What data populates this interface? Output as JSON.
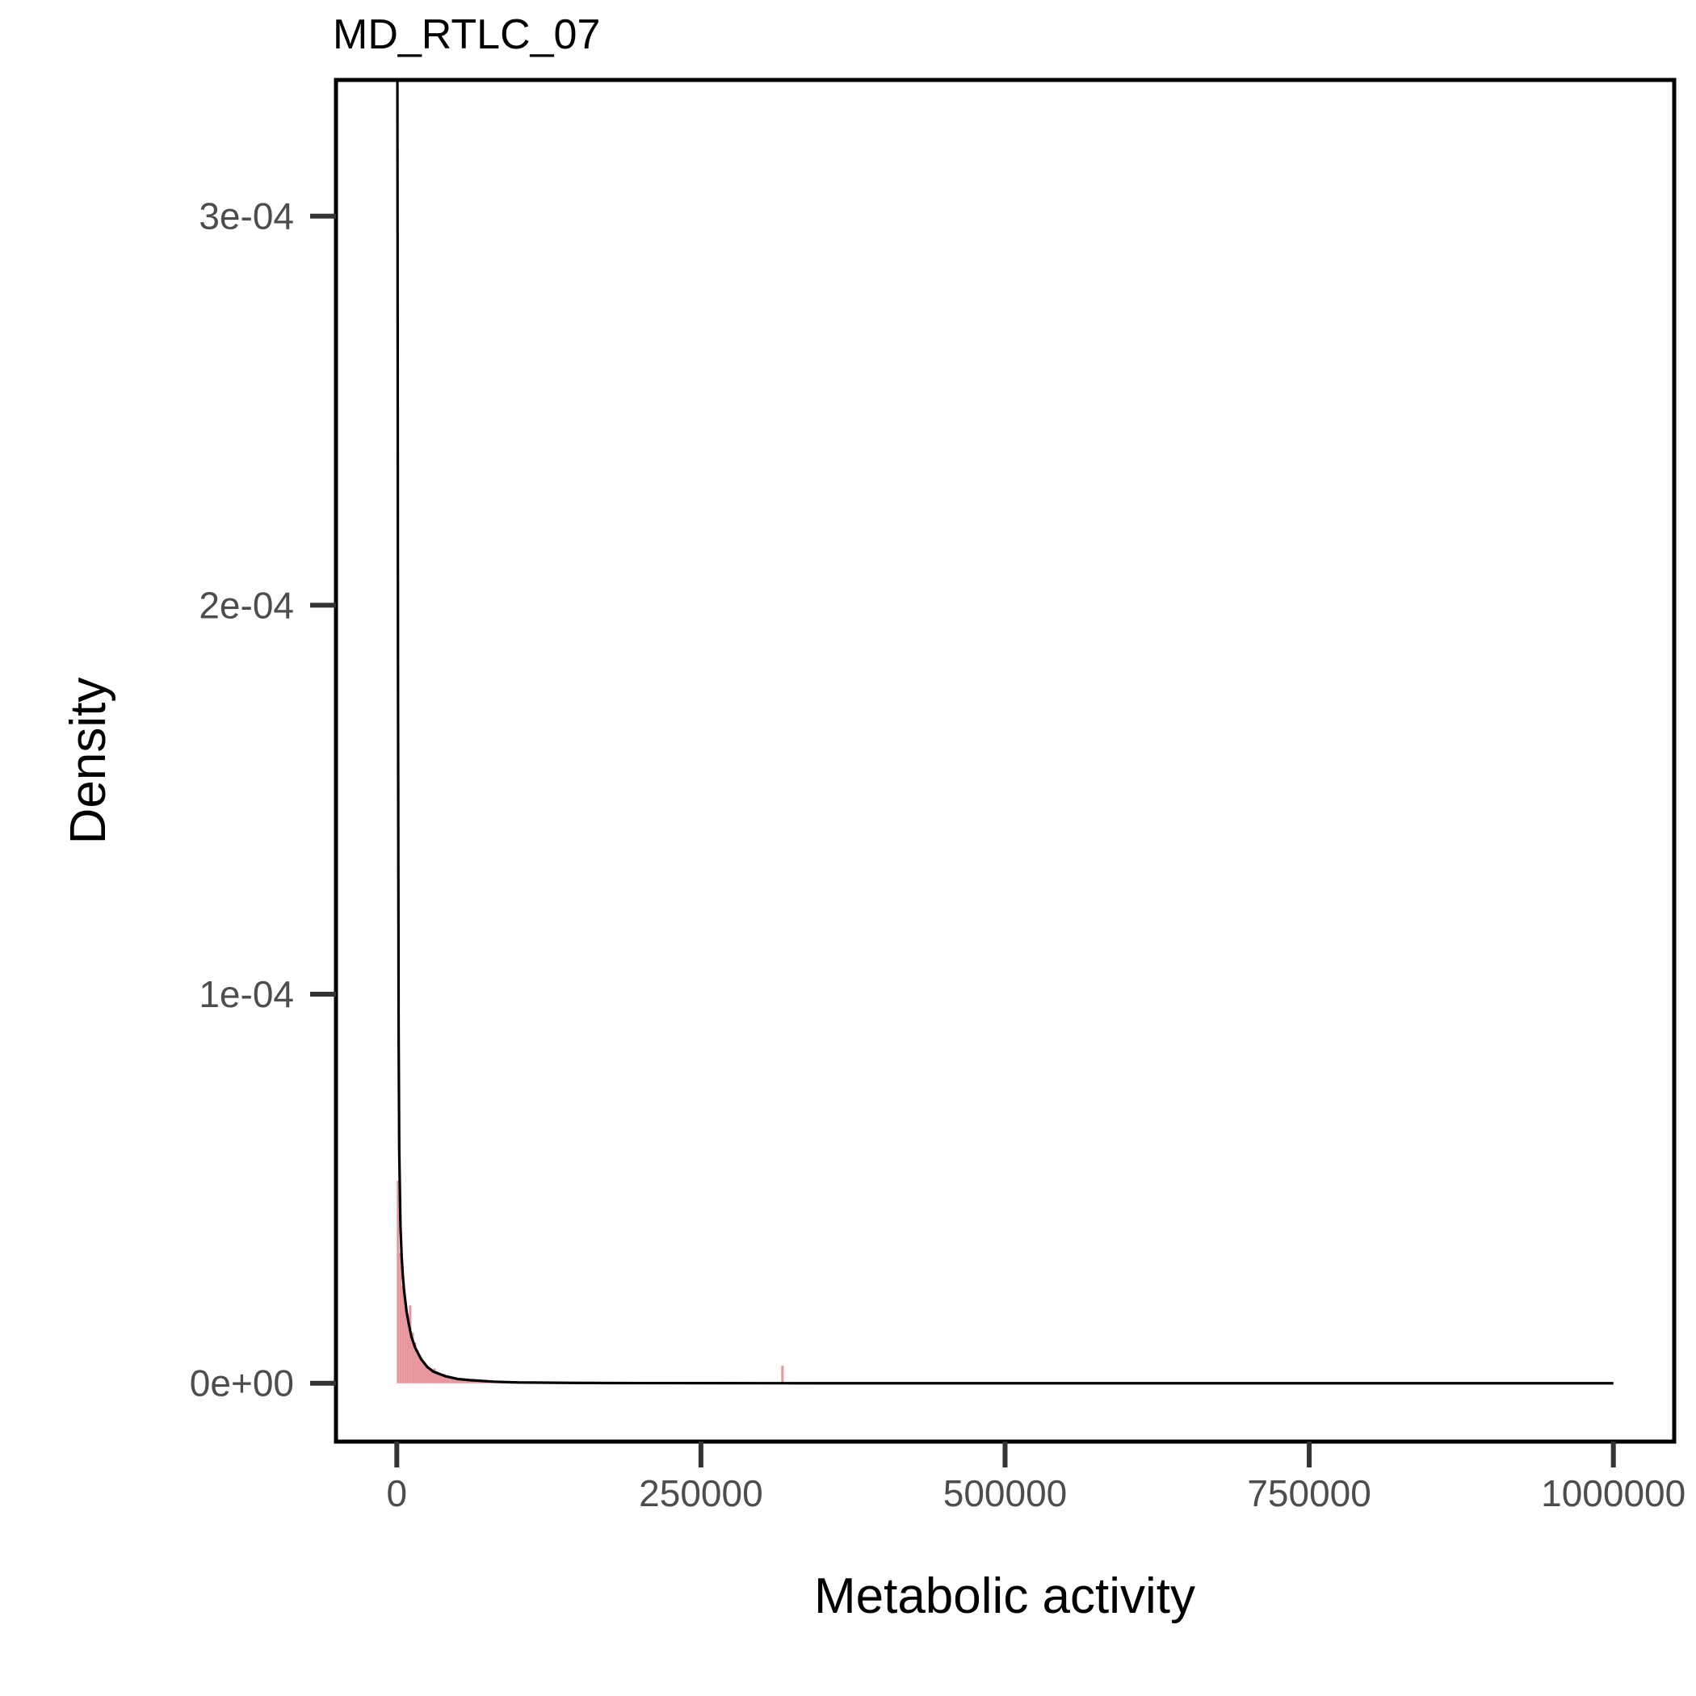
{
  "chart_data": {
    "type": "area",
    "title": "MD_RTLC_07",
    "xlabel": "Metabolic activity",
    "ylabel": "Density",
    "xlim": [
      -50000,
      1050000
    ],
    "ylim": [
      -1.5e-05,
      0.000335
    ],
    "x_ticks": [
      0,
      250000,
      500000,
      750000,
      1000000
    ],
    "x_tick_labels": [
      "0",
      "250000",
      "500000",
      "750000",
      "1000000"
    ],
    "y_ticks": [
      0,
      0.0001,
      0.0002,
      0.0003
    ],
    "y_tick_labels": [
      "0e+00",
      "1e-04",
      "2e-04",
      "3e-04"
    ],
    "grid": false,
    "histogram": {
      "color": "#e7969c",
      "bins": [
        {
          "x0": 0,
          "x1": 2000,
          "density": 5.2e-05
        },
        {
          "x0": 2000,
          "x1": 4000,
          "density": 3.35e-05
        },
        {
          "x0": 4000,
          "x1": 6000,
          "density": 2.5e-05
        },
        {
          "x0": 6000,
          "x1": 8000,
          "density": 2.1e-05
        },
        {
          "x0": 8000,
          "x1": 10000,
          "density": 1.7e-05
        },
        {
          "x0": 10000,
          "x1": 12000,
          "density": 2e-05
        },
        {
          "x0": 12000,
          "x1": 14000,
          "density": 1.3e-05
        },
        {
          "x0": 14000,
          "x1": 16000,
          "density": 1.05e-05
        },
        {
          "x0": 16000,
          "x1": 18000,
          "density": 8.5e-06
        },
        {
          "x0": 18000,
          "x1": 20000,
          "density": 7e-06
        },
        {
          "x0": 20000,
          "x1": 22000,
          "density": 6e-06
        },
        {
          "x0": 22000,
          "x1": 24000,
          "density": 5.2e-06
        },
        {
          "x0": 24000,
          "x1": 26000,
          "density": 4.5e-06
        },
        {
          "x0": 26000,
          "x1": 28000,
          "density": 4e-06
        },
        {
          "x0": 28000,
          "x1": 30000,
          "density": 3.6e-06
        },
        {
          "x0": 30000,
          "x1": 32000,
          "density": 3.8e-06
        },
        {
          "x0": 32000,
          "x1": 34000,
          "density": 3e-06
        },
        {
          "x0": 34000,
          "x1": 36000,
          "density": 2.7e-06
        },
        {
          "x0": 36000,
          "x1": 38000,
          "density": 2.2e-06
        },
        {
          "x0": 38000,
          "x1": 40000,
          "density": 2.4e-06
        },
        {
          "x0": 40000,
          "x1": 44000,
          "density": 1.8e-06
        },
        {
          "x0": 44000,
          "x1": 48000,
          "density": 1.5e-06
        },
        {
          "x0": 48000,
          "x1": 52000,
          "density": 1.3e-06
        },
        {
          "x0": 52000,
          "x1": 56000,
          "density": 1.1e-06
        },
        {
          "x0": 56000,
          "x1": 60000,
          "density": 1e-06
        },
        {
          "x0": 60000,
          "x1": 66000,
          "density": 8e-07
        },
        {
          "x0": 66000,
          "x1": 72000,
          "density": 7e-07
        },
        {
          "x0": 72000,
          "x1": 80000,
          "density": 6e-07
        },
        {
          "x0": 80000,
          "x1": 90000,
          "density": 5e-07
        },
        {
          "x0": 90000,
          "x1": 100000,
          "density": 4e-07
        },
        {
          "x0": 100000,
          "x1": 120000,
          "density": 3e-07
        },
        {
          "x0": 120000,
          "x1": 140000,
          "density": 2e-07
        },
        {
          "x0": 140000,
          "x1": 170000,
          "density": 2e-07
        },
        {
          "x0": 316000,
          "x1": 318000,
          "density": 4.5e-06
        }
      ]
    },
    "density_curve": {
      "color": "#000000",
      "x": [
        500,
        1000,
        1500,
        2000,
        3000,
        4000,
        5000,
        6000,
        8000,
        10000,
        12000,
        15000,
        20000,
        25000,
        30000,
        40000,
        50000,
        60000,
        80000,
        100000,
        150000,
        200000,
        300000,
        400000,
        500000,
        600000,
        700000,
        800000,
        900000,
        1000000
      ],
      "y": [
        0.000335,
        0.00018,
        9e-05,
        6e-05,
        4.05e-05,
        3.25e-05,
        2.75e-05,
        2.38e-05,
        1.85e-05,
        1.5e-05,
        1.2e-05,
        9.2e-06,
        6.2e-06,
        4.2e-06,
        3e-06,
        1.8e-06,
        1.1e-06,
        8e-07,
        4e-07,
        2e-07,
        8e-08,
        4e-08,
        1e-08,
        0.0,
        0.0,
        0.0,
        0.0,
        0.0,
        0.0,
        0.0
      ]
    }
  }
}
